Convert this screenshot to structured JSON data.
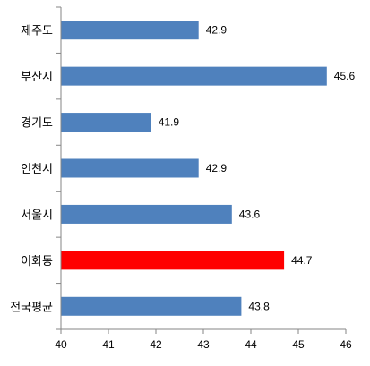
{
  "chart_data": {
    "type": "bar",
    "orientation": "horizontal",
    "categories": [
      "제주도",
      "부산시",
      "경기도",
      "인천시",
      "서울시",
      "이화동",
      "전국평균"
    ],
    "values": [
      42.9,
      45.6,
      41.9,
      42.9,
      43.6,
      44.7,
      43.8
    ],
    "data_labels": [
      "42.9",
      "45.6",
      "41.9",
      "42.9",
      "43.6",
      "44.7",
      "43.8"
    ],
    "bar_colors": [
      "#4f81bd",
      "#4f81bd",
      "#4f81bd",
      "#4f81bd",
      "#4f81bd",
      "#ff0000",
      "#4f81bd"
    ],
    "xlim": [
      40,
      46
    ],
    "x_ticks": [
      "40",
      "41",
      "42",
      "43",
      "44",
      "45",
      "46"
    ],
    "grid": false,
    "legend": "none"
  }
}
